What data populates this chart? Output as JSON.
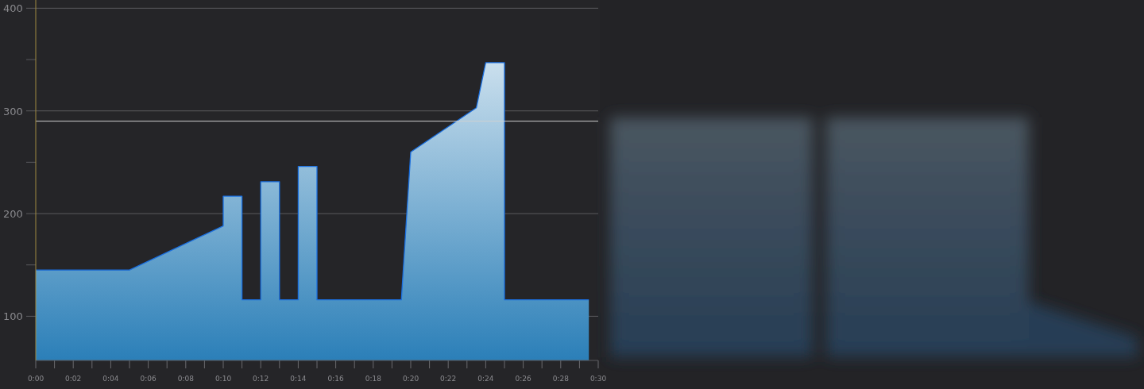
{
  "chart_data": {
    "type": "area",
    "xlim": [
      0,
      30
    ],
    "ylim": [
      57,
      408
    ],
    "xticks": [
      {
        "value": 0,
        "label": "0:00"
      },
      {
        "value": 1,
        "label": null
      },
      {
        "value": 2,
        "label": "0:02"
      },
      {
        "value": 3,
        "label": null
      },
      {
        "value": 4,
        "label": "0:04"
      },
      {
        "value": 5,
        "label": null
      },
      {
        "value": 6,
        "label": "0:06"
      },
      {
        "value": 7,
        "label": null
      },
      {
        "value": 8,
        "label": "0:08"
      },
      {
        "value": 9,
        "label": null
      },
      {
        "value": 10,
        "label": "0:10"
      },
      {
        "value": 11,
        "label": null
      },
      {
        "value": 12,
        "label": "0:12"
      },
      {
        "value": 13,
        "label": null
      },
      {
        "value": 14,
        "label": "0:14"
      },
      {
        "value": 15,
        "label": null
      },
      {
        "value": 16,
        "label": "0:16"
      },
      {
        "value": 17,
        "label": null
      },
      {
        "value": 18,
        "label": "0:18"
      },
      {
        "value": 19,
        "label": null
      },
      {
        "value": 20,
        "label": "0:20"
      },
      {
        "value": 21,
        "label": null
      },
      {
        "value": 22,
        "label": "0:22"
      },
      {
        "value": 23,
        "label": null
      },
      {
        "value": 24,
        "label": "0:24"
      },
      {
        "value": 25,
        "label": null
      },
      {
        "value": 26,
        "label": "0:26"
      },
      {
        "value": 27,
        "label": null
      },
      {
        "value": 28,
        "label": "0:28"
      },
      {
        "value": 29,
        "label": null
      },
      {
        "value": 30,
        "label": "0:30"
      }
    ],
    "yticks": [
      100,
      {
        "value": 150,
        "label": null
      },
      200,
      {
        "value": 250,
        "label": null
      },
      300,
      {
        "value": 350,
        "label": null
      },
      400
    ],
    "grid": "y",
    "line_style": "solid",
    "series": [
      {
        "color": "#2b7fb8",
        "x": [
          0,
          5,
          10,
          10,
          11,
          11,
          12,
          12,
          13,
          13,
          14,
          14,
          15,
          15,
          19.5,
          20,
          23.5,
          24,
          25,
          25,
          29.5
        ],
        "values": [
          145,
          145,
          188,
          217,
          217,
          116,
          116,
          231,
          231,
          116,
          116,
          246,
          246,
          116,
          116,
          260,
          303,
          347,
          347,
          116,
          116
        ]
      }
    ],
    "ref_lines": [
      {
        "axis": "y",
        "value": 290,
        "color": "#d0d0d0"
      }
    ]
  }
}
